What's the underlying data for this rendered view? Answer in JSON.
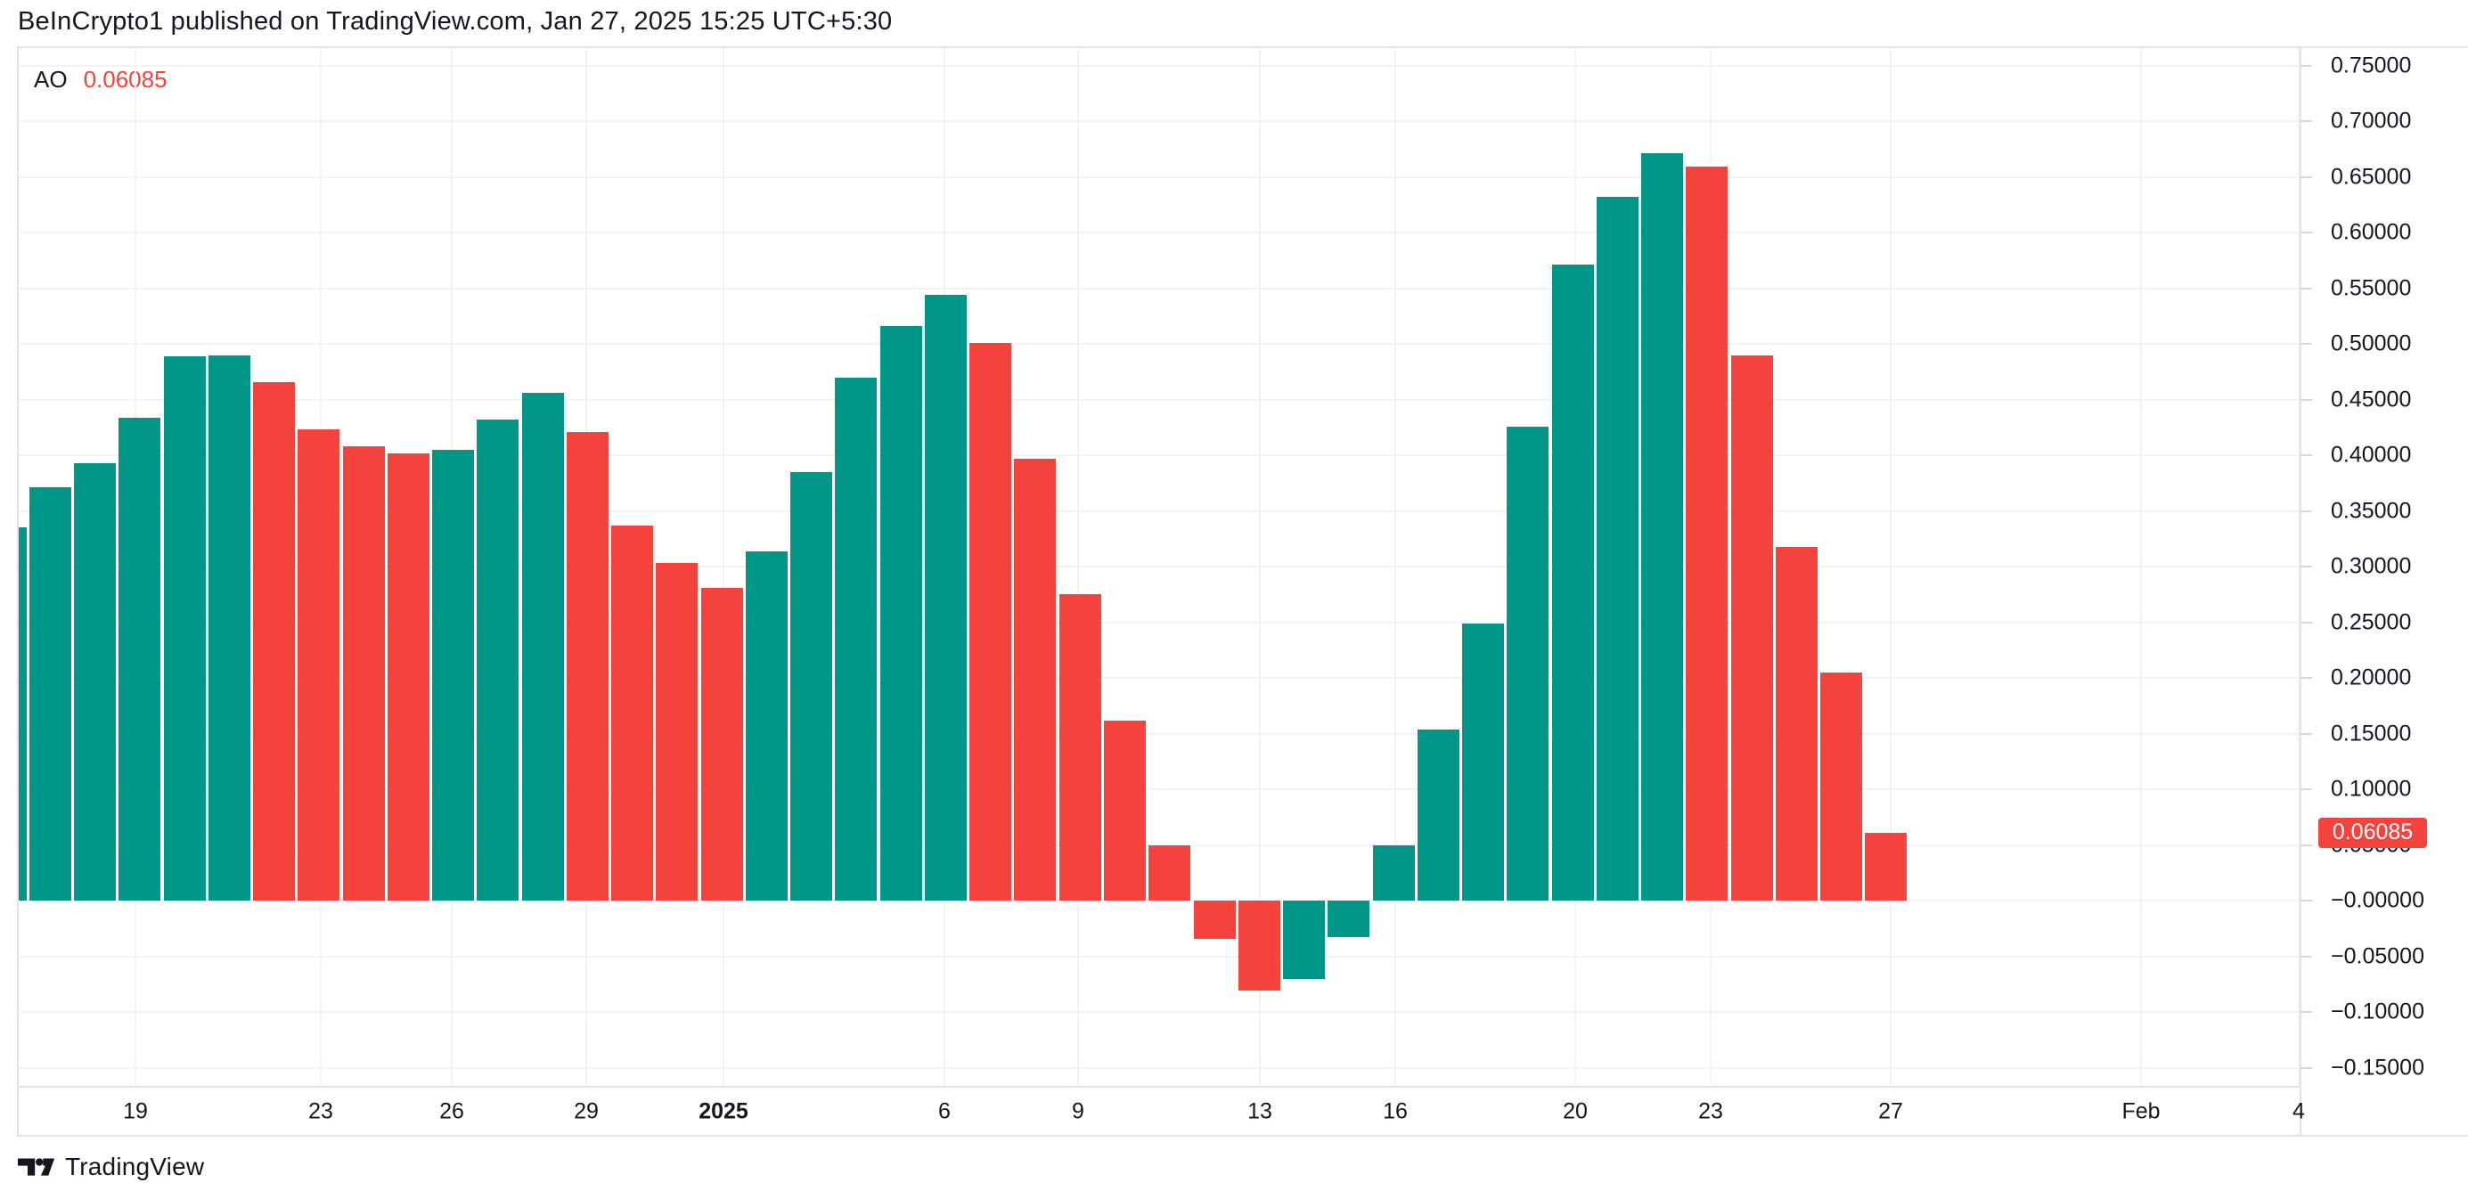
{
  "header": {
    "attribution": "BeInCrypto1 published on TradingView.com, Jan 27, 2025 15:25 UTC+5:30"
  },
  "legend": {
    "indicator": "AO",
    "value": "0.06085"
  },
  "footer": {
    "brand": "TradingView"
  },
  "colors": {
    "up": "#009688",
    "down": "#F4433C",
    "value_text": "#F4433C",
    "badge_bg": "#F4433C",
    "badge_text": "#FFFFFF",
    "text": "#131722",
    "grid": "#F0F3FA",
    "border": "#E0E3EB",
    "background": "#FFFFFF"
  },
  "y_axis": {
    "ticks": [
      {
        "label": "0.75000",
        "value": 0.75
      },
      {
        "label": "0.70000",
        "value": 0.7
      },
      {
        "label": "0.65000",
        "value": 0.65
      },
      {
        "label": "0.60000",
        "value": 0.6
      },
      {
        "label": "0.55000",
        "value": 0.55
      },
      {
        "label": "0.50000",
        "value": 0.5
      },
      {
        "label": "0.45000",
        "value": 0.45
      },
      {
        "label": "0.40000",
        "value": 0.4
      },
      {
        "label": "0.35000",
        "value": 0.35
      },
      {
        "label": "0.30000",
        "value": 0.3
      },
      {
        "label": "0.25000",
        "value": 0.25
      },
      {
        "label": "0.20000",
        "value": 0.2
      },
      {
        "label": "0.15000",
        "value": 0.15
      },
      {
        "label": "0.10000",
        "value": 0.1
      },
      {
        "label": "0.05000",
        "value": 0.05
      },
      {
        "label": "−0.00000",
        "value": 0.0
      },
      {
        "label": "−0.05000",
        "value": -0.05
      },
      {
        "label": "−0.10000",
        "value": -0.1
      },
      {
        "label": "−0.15000",
        "value": -0.15
      }
    ],
    "badge": {
      "label": "0.06085",
      "value": 0.06085
    }
  },
  "x_axis": {
    "ticks": [
      {
        "label": "19"
      },
      {
        "label": "23"
      },
      {
        "label": "26"
      },
      {
        "label": "29"
      },
      {
        "label": "2025",
        "bold": true
      },
      {
        "label": "6"
      },
      {
        "label": "9"
      },
      {
        "label": "13"
      },
      {
        "label": "16"
      },
      {
        "label": "20"
      },
      {
        "label": "23"
      },
      {
        "label": "27"
      },
      {
        "label": "Feb"
      },
      {
        "label": "4"
      }
    ]
  },
  "chart_data": {
    "type": "bar",
    "indicator": "AO",
    "last_value": 0.06085,
    "ylim": [
      -0.166,
      0.766
    ],
    "grid": true,
    "legend_position": "top-left",
    "x": [
      "2024-12-16",
      "2024-12-17",
      "2024-12-18",
      "2024-12-19",
      "2024-12-20",
      "2024-12-21",
      "2024-12-22",
      "2024-12-23",
      "2024-12-24",
      "2024-12-25",
      "2024-12-26",
      "2024-12-27",
      "2024-12-28",
      "2024-12-29",
      "2024-12-30",
      "2024-12-31",
      "2025-01-01",
      "2025-01-02",
      "2025-01-03",
      "2025-01-04",
      "2025-01-05",
      "2025-01-06",
      "2025-01-07",
      "2025-01-08",
      "2025-01-09",
      "2025-01-10",
      "2025-01-11",
      "2025-01-12",
      "2025-01-13",
      "2025-01-14",
      "2025-01-15",
      "2025-01-16",
      "2025-01-17",
      "2025-01-18",
      "2025-01-19",
      "2025-01-20",
      "2025-01-21",
      "2025-01-22",
      "2025-01-23",
      "2025-01-24",
      "2025-01-25",
      "2025-01-26",
      "2025-01-27"
    ],
    "values": [
      0.335,
      0.371,
      0.393,
      0.434,
      0.489,
      0.49,
      0.466,
      0.423,
      0.408,
      0.402,
      0.405,
      0.432,
      0.456,
      0.421,
      0.337,
      0.303,
      0.281,
      0.314,
      0.385,
      0.47,
      0.516,
      0.544,
      0.501,
      0.397,
      0.275,
      0.162,
      0.05,
      -0.034,
      -0.081,
      -0.07,
      -0.033,
      0.05,
      0.154,
      0.249,
      0.426,
      0.571,
      0.632,
      0.671,
      0.659,
      0.49,
      0.318,
      0.205,
      0.06085
    ],
    "directions": [
      "up",
      "up",
      "up",
      "up",
      "up",
      "up",
      "down",
      "down",
      "down",
      "down",
      "up",
      "up",
      "up",
      "down",
      "down",
      "down",
      "down",
      "up",
      "up",
      "up",
      "up",
      "up",
      "down",
      "down",
      "down",
      "down",
      "down",
      "down",
      "down",
      "up",
      "up",
      "up",
      "up",
      "up",
      "up",
      "up",
      "up",
      "up",
      "down",
      "down",
      "down",
      "down",
      "down"
    ]
  }
}
